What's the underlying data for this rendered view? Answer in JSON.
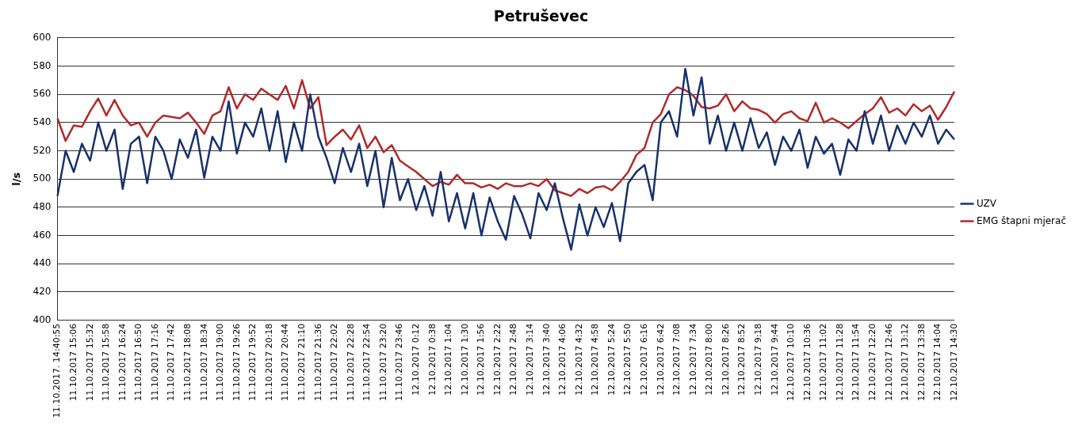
{
  "chart_data": {
    "type": "line",
    "title": "Petruševec",
    "ylabel": "l/s",
    "categories": [
      "11.10.2017. 14:40:55",
      null,
      "11.10.2017 15:06",
      null,
      "11.10.2017 15:32",
      null,
      "11.10.2017 15:58",
      null,
      "11.10.2017 16:24",
      null,
      "11.10.2017 16:50",
      null,
      "11.10.2017 17:16",
      null,
      "11.10.2017 17:42",
      null,
      "11.10.2017 18:08",
      null,
      "11.10.2017 18:34",
      null,
      "11.10.2017 19:00",
      null,
      "11.10.2017 19:26",
      null,
      "11.10.2017 19:52",
      null,
      "11.10.2017 20:18",
      null,
      "11.10.2017 20:44",
      null,
      "11.10.2017 21:10",
      null,
      "11.10.2017 21:36",
      null,
      "11.10.2017 22:02",
      null,
      "11.10.2017 22:28",
      null,
      "11.10.2017 22:54",
      null,
      "11.10.2017 23:20",
      null,
      "11.10.2017 23:46",
      null,
      "12.10.2017 0:12",
      null,
      "12.10.2017 0:38",
      null,
      "12.10.2017 1:04",
      null,
      "12.10.2017 1:30",
      null,
      "12.10.2017 1:56",
      null,
      "12.10.2017 2:22",
      null,
      "12.10.2017 2:48",
      null,
      "12.10.2017 3:14",
      null,
      "12.10.2017 3:40",
      null,
      "12.10.2017 4:06",
      null,
      "12.10.2017 4:32",
      null,
      "12.10.2017 4:58",
      null,
      "12.10.2017 5:24",
      null,
      "12.10.2017 5:50",
      null,
      "12.10.2017 6:16",
      null,
      "12.10.2017 6:42",
      null,
      "12.10.2017 7:08",
      null,
      "12.10.2017 7:34",
      null,
      "12.10.2017 8:00",
      null,
      "12.10.2017 8:26",
      null,
      "12.10.2017 8:52",
      null,
      "12.10.2017 9:18",
      null,
      "12.10.2017 9:44",
      null,
      "12.10.2017 10:10",
      null,
      "12.10.2017 10:36",
      null,
      "12.10.2017 11:02",
      null,
      "12.10.2017 11:28",
      null,
      "12.10.2017 11:54",
      null,
      "12.10.2017 12:20",
      null,
      "12.10.2017 12:46",
      null,
      "12.10.2017 13:12",
      null,
      "12.10.2017 13:38",
      null,
      "12.10.2017 14:04",
      null,
      "12.10.2017 14:30"
    ],
    "series": [
      {
        "name": "UZV",
        "color": "#17326b",
        "values": [
          488,
          520,
          505,
          525,
          513,
          540,
          520,
          535,
          493,
          525,
          530,
          497,
          530,
          520,
          500,
          528,
          515,
          535,
          501,
          530,
          520,
          555,
          518,
          540,
          530,
          550,
          520,
          548,
          512,
          540,
          520,
          560,
          530,
          515,
          497,
          522,
          505,
          525,
          495,
          520,
          480,
          515,
          485,
          500,
          478,
          495,
          474,
          505,
          470,
          490,
          465,
          490,
          460,
          487,
          470,
          457,
          488,
          475,
          458,
          490,
          478,
          497,
          472,
          450,
          482,
          460,
          480,
          466,
          483,
          456,
          497,
          505,
          510,
          485,
          540,
          548,
          530,
          578,
          545,
          572,
          525,
          545,
          520,
          540,
          520,
          543,
          522,
          533,
          510,
          530,
          520,
          535,
          508,
          530,
          518,
          525,
          503,
          528,
          520,
          548,
          525,
          545,
          520,
          538,
          525,
          540,
          530,
          545,
          525,
          535,
          528
        ]
      },
      {
        "name": "EMG štapni mjerač",
        "color": "#b22a2a",
        "values": [
          543,
          527,
          538,
          537,
          548,
          557,
          545,
          556,
          545,
          538,
          540,
          530,
          540,
          545,
          544,
          543,
          547,
          540,
          532,
          545,
          548,
          565,
          550,
          560,
          556,
          564,
          560,
          556,
          566,
          550,
          570,
          550,
          558,
          524,
          530,
          535,
          528,
          538,
          522,
          530,
          519,
          524,
          513,
          509,
          505,
          500,
          495,
          498,
          496,
          503,
          497,
          497,
          494,
          496,
          493,
          497,
          495,
          495,
          497,
          495,
          500,
          492,
          490,
          488,
          493,
          490,
          494,
          495,
          492,
          498,
          505,
          517,
          522,
          540,
          546,
          560,
          565,
          563,
          559,
          551,
          550,
          552,
          560,
          548,
          555,
          550,
          549,
          546,
          540,
          546,
          548,
          543,
          541,
          554,
          540,
          543,
          540,
          536,
          541,
          546,
          550,
          558,
          547,
          550,
          545,
          553,
          548,
          552,
          542,
          551,
          562
        ]
      }
    ],
    "ylim": [
      400,
      600
    ],
    "yticks": [
      400,
      420,
      440,
      460,
      480,
      500,
      520,
      540,
      560,
      580,
      600
    ],
    "grid": "y",
    "legend": "right",
    "marker": "none",
    "line_style": "solid"
  }
}
